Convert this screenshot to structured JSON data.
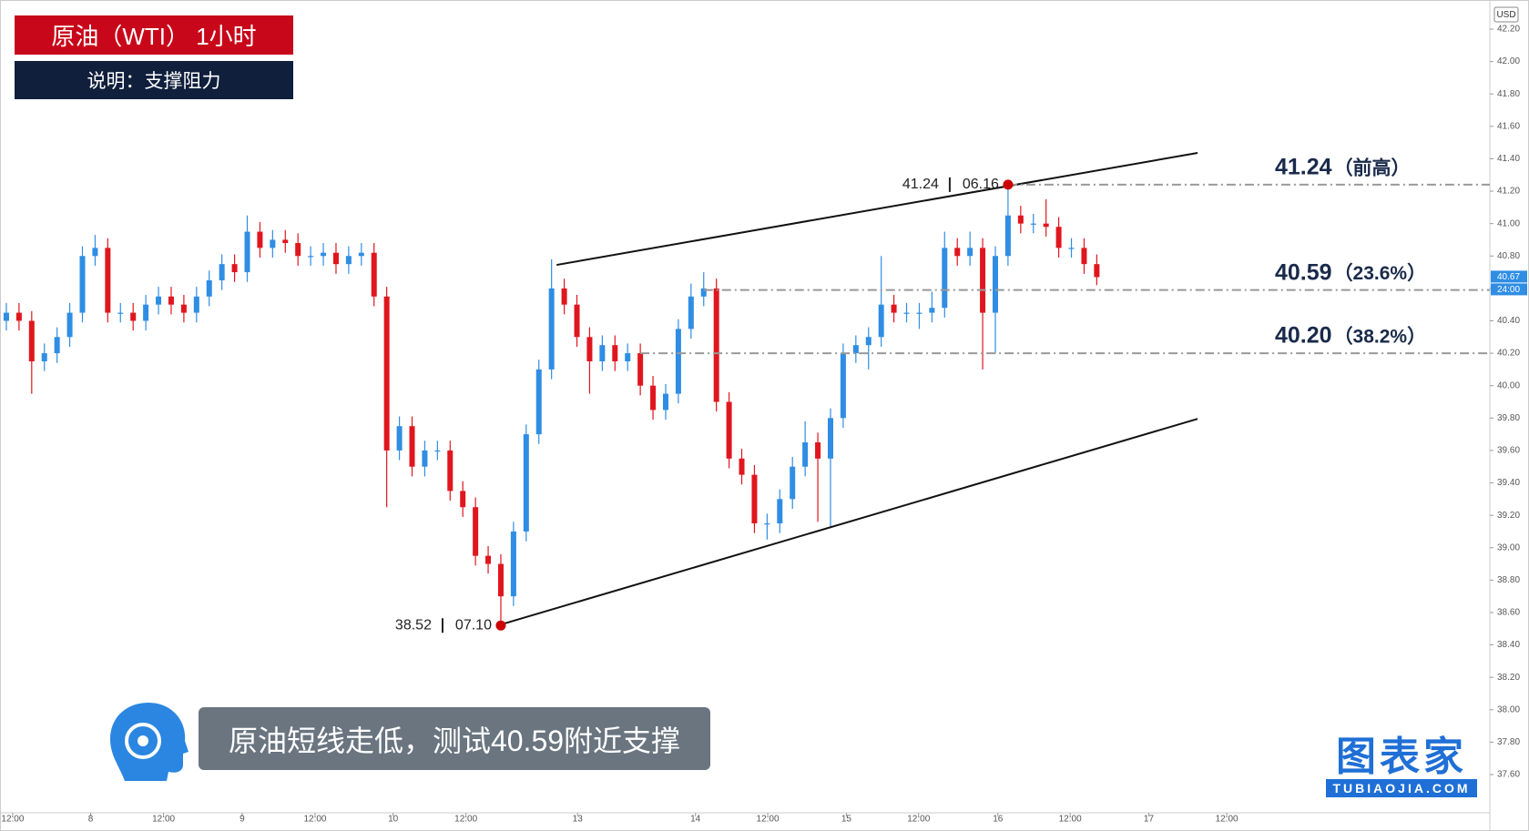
{
  "title": "原油（WTI） 1小时",
  "subtitle": "说明：支撑阻力",
  "caption": "原油短线走低，测试40.59附近支撑",
  "brand": {
    "name": "图表家",
    "site": "TUBIAOJIA.COM"
  },
  "chart_data": {
    "type": "candlestick",
    "currency": "USD",
    "up_color": "#2f8de4",
    "down_color": "#e0161e",
    "x": [
      1,
      3,
      5,
      7,
      9,
      11,
      13,
      15,
      17,
      19,
      21,
      23,
      25,
      27,
      29,
      31,
      33,
      35,
      37,
      39,
      41,
      43,
      45,
      47,
      49,
      51,
      53,
      55,
      57,
      59,
      61,
      63,
      65,
      67,
      69,
      71,
      73,
      75,
      77,
      79,
      81,
      83,
      85,
      87,
      89,
      91,
      93,
      95,
      97,
      99,
      101,
      103,
      105,
      107,
      109,
      111,
      113,
      115,
      117,
      119,
      121,
      123,
      125,
      127,
      129,
      131,
      133,
      135,
      137,
      139,
      141,
      143,
      145,
      147,
      149,
      151,
      153,
      155,
      157,
      159,
      161,
      163,
      165,
      167,
      169,
      171,
      173
    ],
    "open": [
      40.4,
      40.45,
      40.4,
      40.15,
      40.2,
      40.3,
      40.45,
      40.8,
      40.85,
      40.45,
      40.45,
      40.4,
      40.5,
      40.55,
      40.5,
      40.45,
      40.55,
      40.65,
      40.75,
      40.7,
      40.95,
      40.85,
      40.9,
      40.88,
      40.8,
      40.8,
      40.82,
      40.75,
      40.8,
      40.82,
      40.55,
      39.6,
      39.75,
      39.5,
      39.6,
      39.6,
      39.35,
      39.25,
      38.95,
      38.9,
      38.7,
      39.1,
      39.7,
      40.1,
      40.6,
      40.5,
      40.3,
      40.15,
      40.25,
      40.15,
      40.2,
      40.0,
      39.85,
      39.95,
      40.35,
      40.55,
      40.6,
      39.9,
      39.55,
      39.45,
      39.15,
      39.15,
      39.3,
      39.5,
      39.65,
      39.55,
      39.8,
      40.2,
      40.25,
      40.3,
      40.5,
      40.45,
      40.45,
      40.45,
      40.48,
      40.85,
      40.8,
      40.85,
      40.45,
      40.8,
      41.05,
      41.0,
      41.0,
      40.98,
      40.85,
      40.85,
      40.75
    ],
    "high": [
      40.51,
      40.51,
      40.46,
      40.26,
      40.36,
      40.51,
      40.86,
      40.93,
      40.91,
      40.51,
      40.51,
      40.56,
      40.61,
      40.61,
      40.56,
      40.61,
      40.71,
      40.81,
      40.81,
      41.05,
      41.01,
      40.96,
      40.96,
      40.94,
      40.86,
      40.88,
      40.88,
      40.86,
      40.88,
      40.88,
      40.61,
      39.81,
      39.81,
      39.66,
      39.66,
      39.66,
      39.41,
      39.31,
      39.01,
      38.96,
      39.16,
      39.76,
      40.16,
      40.78,
      40.66,
      40.56,
      40.36,
      40.31,
      40.31,
      40.26,
      40.26,
      40.06,
      40.01,
      40.41,
      40.63,
      40.7,
      40.66,
      39.96,
      39.61,
      39.51,
      39.21,
      39.36,
      39.56,
      39.78,
      39.71,
      39.86,
      40.26,
      40.31,
      40.36,
      40.8,
      40.56,
      40.51,
      40.51,
      40.58,
      40.95,
      40.91,
      40.95,
      40.91,
      40.86,
      41.24,
      41.11,
      41.06,
      41.15,
      41.04,
      40.91,
      40.91,
      40.81
    ],
    "low": [
      40.34,
      40.34,
      39.95,
      40.09,
      40.14,
      40.24,
      40.39,
      40.74,
      40.39,
      40.39,
      40.34,
      40.34,
      40.44,
      40.44,
      40.39,
      40.39,
      40.49,
      40.59,
      40.64,
      40.64,
      40.79,
      40.79,
      40.82,
      40.74,
      40.74,
      40.74,
      40.69,
      40.69,
      40.74,
      40.49,
      39.25,
      39.54,
      39.44,
      39.44,
      39.54,
      39.29,
      39.19,
      38.89,
      38.84,
      38.52,
      38.64,
      39.04,
      39.64,
      40.04,
      40.44,
      40.24,
      39.95,
      40.09,
      40.09,
      40.09,
      39.94,
      39.79,
      39.79,
      39.89,
      40.29,
      40.49,
      39.84,
      39.49,
      39.39,
      39.09,
      39.05,
      39.09,
      39.24,
      39.44,
      39.16,
      39.12,
      39.74,
      40.14,
      40.1,
      40.24,
      40.39,
      40.39,
      40.35,
      40.39,
      40.42,
      40.74,
      40.74,
      40.1,
      40.2,
      40.74,
      40.94,
      40.94,
      40.92,
      40.79,
      40.79,
      40.69,
      40.62
    ],
    "close": [
      40.45,
      40.4,
      40.15,
      40.2,
      40.3,
      40.45,
      40.8,
      40.85,
      40.45,
      40.45,
      40.4,
      40.5,
      40.55,
      40.5,
      40.45,
      40.55,
      40.65,
      40.75,
      40.7,
      40.95,
      40.85,
      40.9,
      40.88,
      40.8,
      40.8,
      40.82,
      40.75,
      40.8,
      40.82,
      40.55,
      39.6,
      39.75,
      39.5,
      39.6,
      39.6,
      39.35,
      39.25,
      38.95,
      38.9,
      38.7,
      39.1,
      39.7,
      40.1,
      40.6,
      40.5,
      40.3,
      40.15,
      40.25,
      40.15,
      40.2,
      40.0,
      39.85,
      39.95,
      40.35,
      40.55,
      40.6,
      39.9,
      39.55,
      39.45,
      39.15,
      39.15,
      39.3,
      39.5,
      39.65,
      39.55,
      39.8,
      40.2,
      40.25,
      40.3,
      40.5,
      40.45,
      40.45,
      40.45,
      40.48,
      40.85,
      40.8,
      40.85,
      40.45,
      40.8,
      41.05,
      41.0,
      41.0,
      40.98,
      40.85,
      40.85,
      40.75,
      40.67
    ],
    "xlim": [
      0,
      235
    ],
    "xticks": [
      {
        "value": 2,
        "label": "12:00"
      },
      {
        "value": 14.3,
        "label": "8"
      },
      {
        "value": 25.8,
        "label": "12:00"
      },
      {
        "value": 38.2,
        "label": "9"
      },
      {
        "value": 49.7,
        "label": "12:00"
      },
      {
        "value": 62,
        "label": "10"
      },
      {
        "value": 73.5,
        "label": "12:00"
      },
      {
        "value": 91.1,
        "label": "13"
      },
      {
        "value": 109.7,
        "label": "14"
      },
      {
        "value": 121.1,
        "label": "12:00"
      },
      {
        "value": 133.5,
        "label": "15"
      },
      {
        "value": 144.9,
        "label": "12:00"
      },
      {
        "value": 157.4,
        "label": "16"
      },
      {
        "value": 168.8,
        "label": "12:00"
      },
      {
        "value": 181.2,
        "label": "17"
      },
      {
        "value": 193.5,
        "label": "12:00"
      }
    ],
    "ylim": [
      37.6,
      42.2
    ],
    "yticks": [
      {
        "value": 37.6,
        "label": "37.60"
      },
      {
        "value": 37.8,
        "label": "37.80"
      },
      {
        "value": 38.0,
        "label": "38.00"
      },
      {
        "value": 38.2,
        "label": "38.20"
      },
      {
        "value": 38.4,
        "label": "38.40"
      },
      {
        "value": 38.6,
        "label": "38.60"
      },
      {
        "value": 38.8,
        "label": "38.80"
      },
      {
        "value": 39.0,
        "label": "39.00"
      },
      {
        "value": 39.2,
        "label": "39.20"
      },
      {
        "value": 39.4,
        "label": "39.40"
      },
      {
        "value": 39.6,
        "label": "39.60"
      },
      {
        "value": 39.8,
        "label": "39.80"
      },
      {
        "value": 40.0,
        "label": "40.00"
      },
      {
        "value": 40.2,
        "label": "40.20"
      },
      {
        "value": 40.4,
        "label": "40.40"
      },
      {
        "value": 40.6,
        "label": "40.60"
      },
      {
        "value": 40.8,
        "label": "40.80"
      },
      {
        "value": 41.0,
        "label": "41.00"
      },
      {
        "value": 41.2,
        "label": "41.20"
      },
      {
        "value": 41.4,
        "label": "41.40"
      },
      {
        "value": 41.6,
        "label": "41.60"
      },
      {
        "value": 41.8,
        "label": "41.80"
      },
      {
        "value": 42.0,
        "label": "42.00"
      },
      {
        "value": 42.2,
        "label": "42.20"
      }
    ],
    "last_price": 40.67,
    "countdown": "24:00",
    "trend_lines": [
      {
        "x": [
          87.8,
          188.9
        ],
        "y": [
          40.745,
          41.436
        ]
      },
      {
        "x": [
          78.5,
          188.9
        ],
        "y": [
          38.52,
          39.795
        ]
      }
    ],
    "levels": [
      {
        "value": 41.24,
        "label": "（前高）",
        "x_start": 159
      },
      {
        "value": 40.59,
        "label": "（23.6%）",
        "x_start": 111
      },
      {
        "value": 40.2,
        "value_label": "40.20",
        "label": "（38.2%）",
        "x_start": 101
      }
    ],
    "extremes": [
      {
        "x": 159,
        "value": 41.24,
        "date": "06.16"
      },
      {
        "x": 79,
        "value": 38.52,
        "date": "07.10"
      }
    ]
  }
}
